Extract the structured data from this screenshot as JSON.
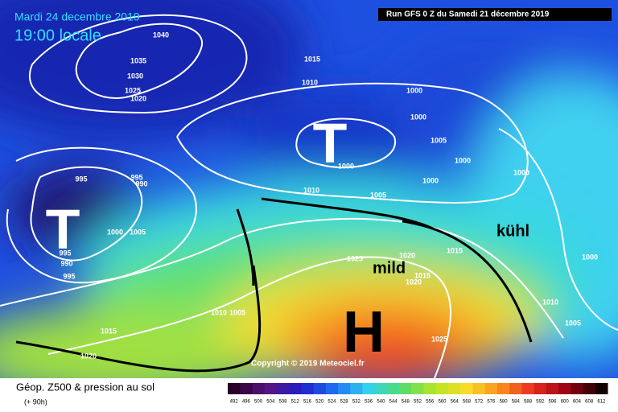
{
  "header": {
    "date": "Mardi 24 decembre 2019",
    "time": "19:00 locale",
    "run": "Run GFS 0 Z du Samedi 21 décembre 2019"
  },
  "map": {
    "lows": [
      "T",
      "T"
    ],
    "high": "H",
    "annotations": [
      "mild",
      "kühl"
    ],
    "copyright": "Copyright © 2019 Meteociel.fr",
    "isobar_labels": [
      "1040",
      "1035",
      "1030",
      "1025",
      "1020",
      "1015",
      "1010",
      "1000",
      "1000",
      "1005",
      "1000",
      "1000",
      "1000",
      "1000",
      "1010",
      "1005",
      "995",
      "995",
      "990",
      "1000",
      "1005",
      "995",
      "990",
      "995",
      "1025",
      "1020",
      "1015",
      "1015",
      "1020",
      "1010",
      "1005",
      "1015",
      "1020",
      "1025",
      "1010",
      "1005",
      "1000"
    ]
  },
  "footer": {
    "title": "Géop. Z500 & pression au sol",
    "lead": "(+ 90h)",
    "scale": [
      492,
      496,
      500,
      504,
      508,
      512,
      516,
      520,
      524,
      528,
      532,
      536,
      540,
      544,
      548,
      552,
      556,
      560,
      564,
      568,
      572,
      576,
      580,
      584,
      588,
      592,
      596,
      600,
      604,
      608,
      612
    ]
  }
}
